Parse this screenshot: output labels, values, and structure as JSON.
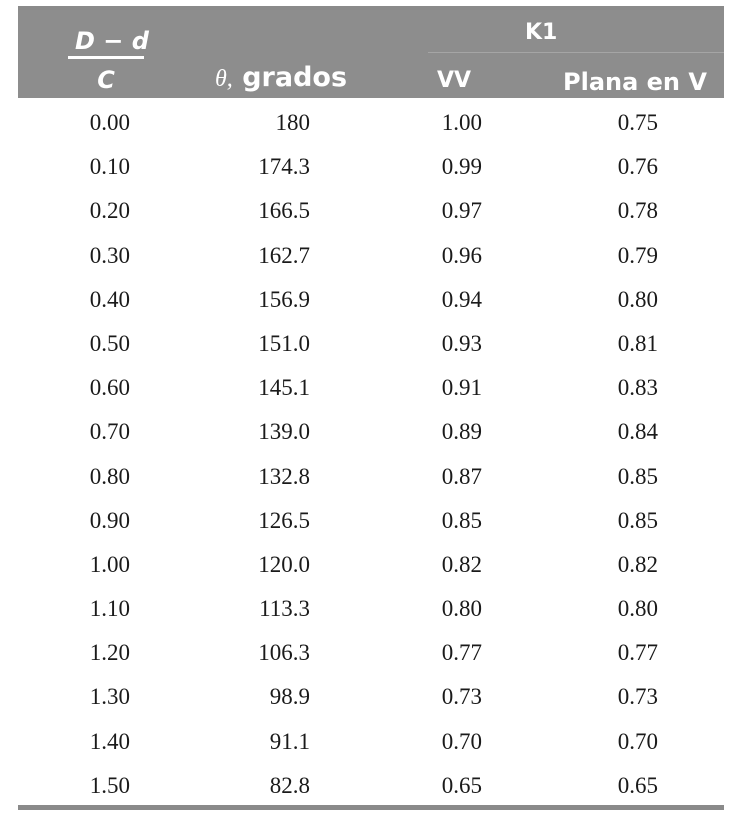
{
  "header": {
    "col1_numerator": "D − d",
    "col1_denominator": "C",
    "col2_symbol": "θ,",
    "col2_label": "grados",
    "group_label": "K1",
    "col3_label": "VV",
    "col4_label": "Plana en V"
  },
  "rows": [
    [
      "0.00",
      "180",
      "1.00",
      "0.75"
    ],
    [
      "0.10",
      "174.3",
      "0.99",
      "0.76"
    ],
    [
      "0.20",
      "166.5",
      "0.97",
      "0.78"
    ],
    [
      "0.30",
      "162.7",
      "0.96",
      "0.79"
    ],
    [
      "0.40",
      "156.9",
      "0.94",
      "0.80"
    ],
    [
      "0.50",
      "151.0",
      "0.93",
      "0.81"
    ],
    [
      "0.60",
      "145.1",
      "0.91",
      "0.83"
    ],
    [
      "0.70",
      "139.0",
      "0.89",
      "0.84"
    ],
    [
      "0.80",
      "132.8",
      "0.87",
      "0.85"
    ],
    [
      "0.90",
      "126.5",
      "0.85",
      "0.85"
    ],
    [
      "1.00",
      "120.0",
      "0.82",
      "0.82"
    ],
    [
      "1.10",
      "113.3",
      "0.80",
      "0.80"
    ],
    [
      "1.20",
      "106.3",
      "0.77",
      "0.77"
    ],
    [
      "1.30",
      "98.9",
      "0.73",
      "0.73"
    ],
    [
      "1.40",
      "91.1",
      "0.70",
      "0.70"
    ],
    [
      "1.50",
      "82.8",
      "0.65",
      "0.65"
    ]
  ]
}
